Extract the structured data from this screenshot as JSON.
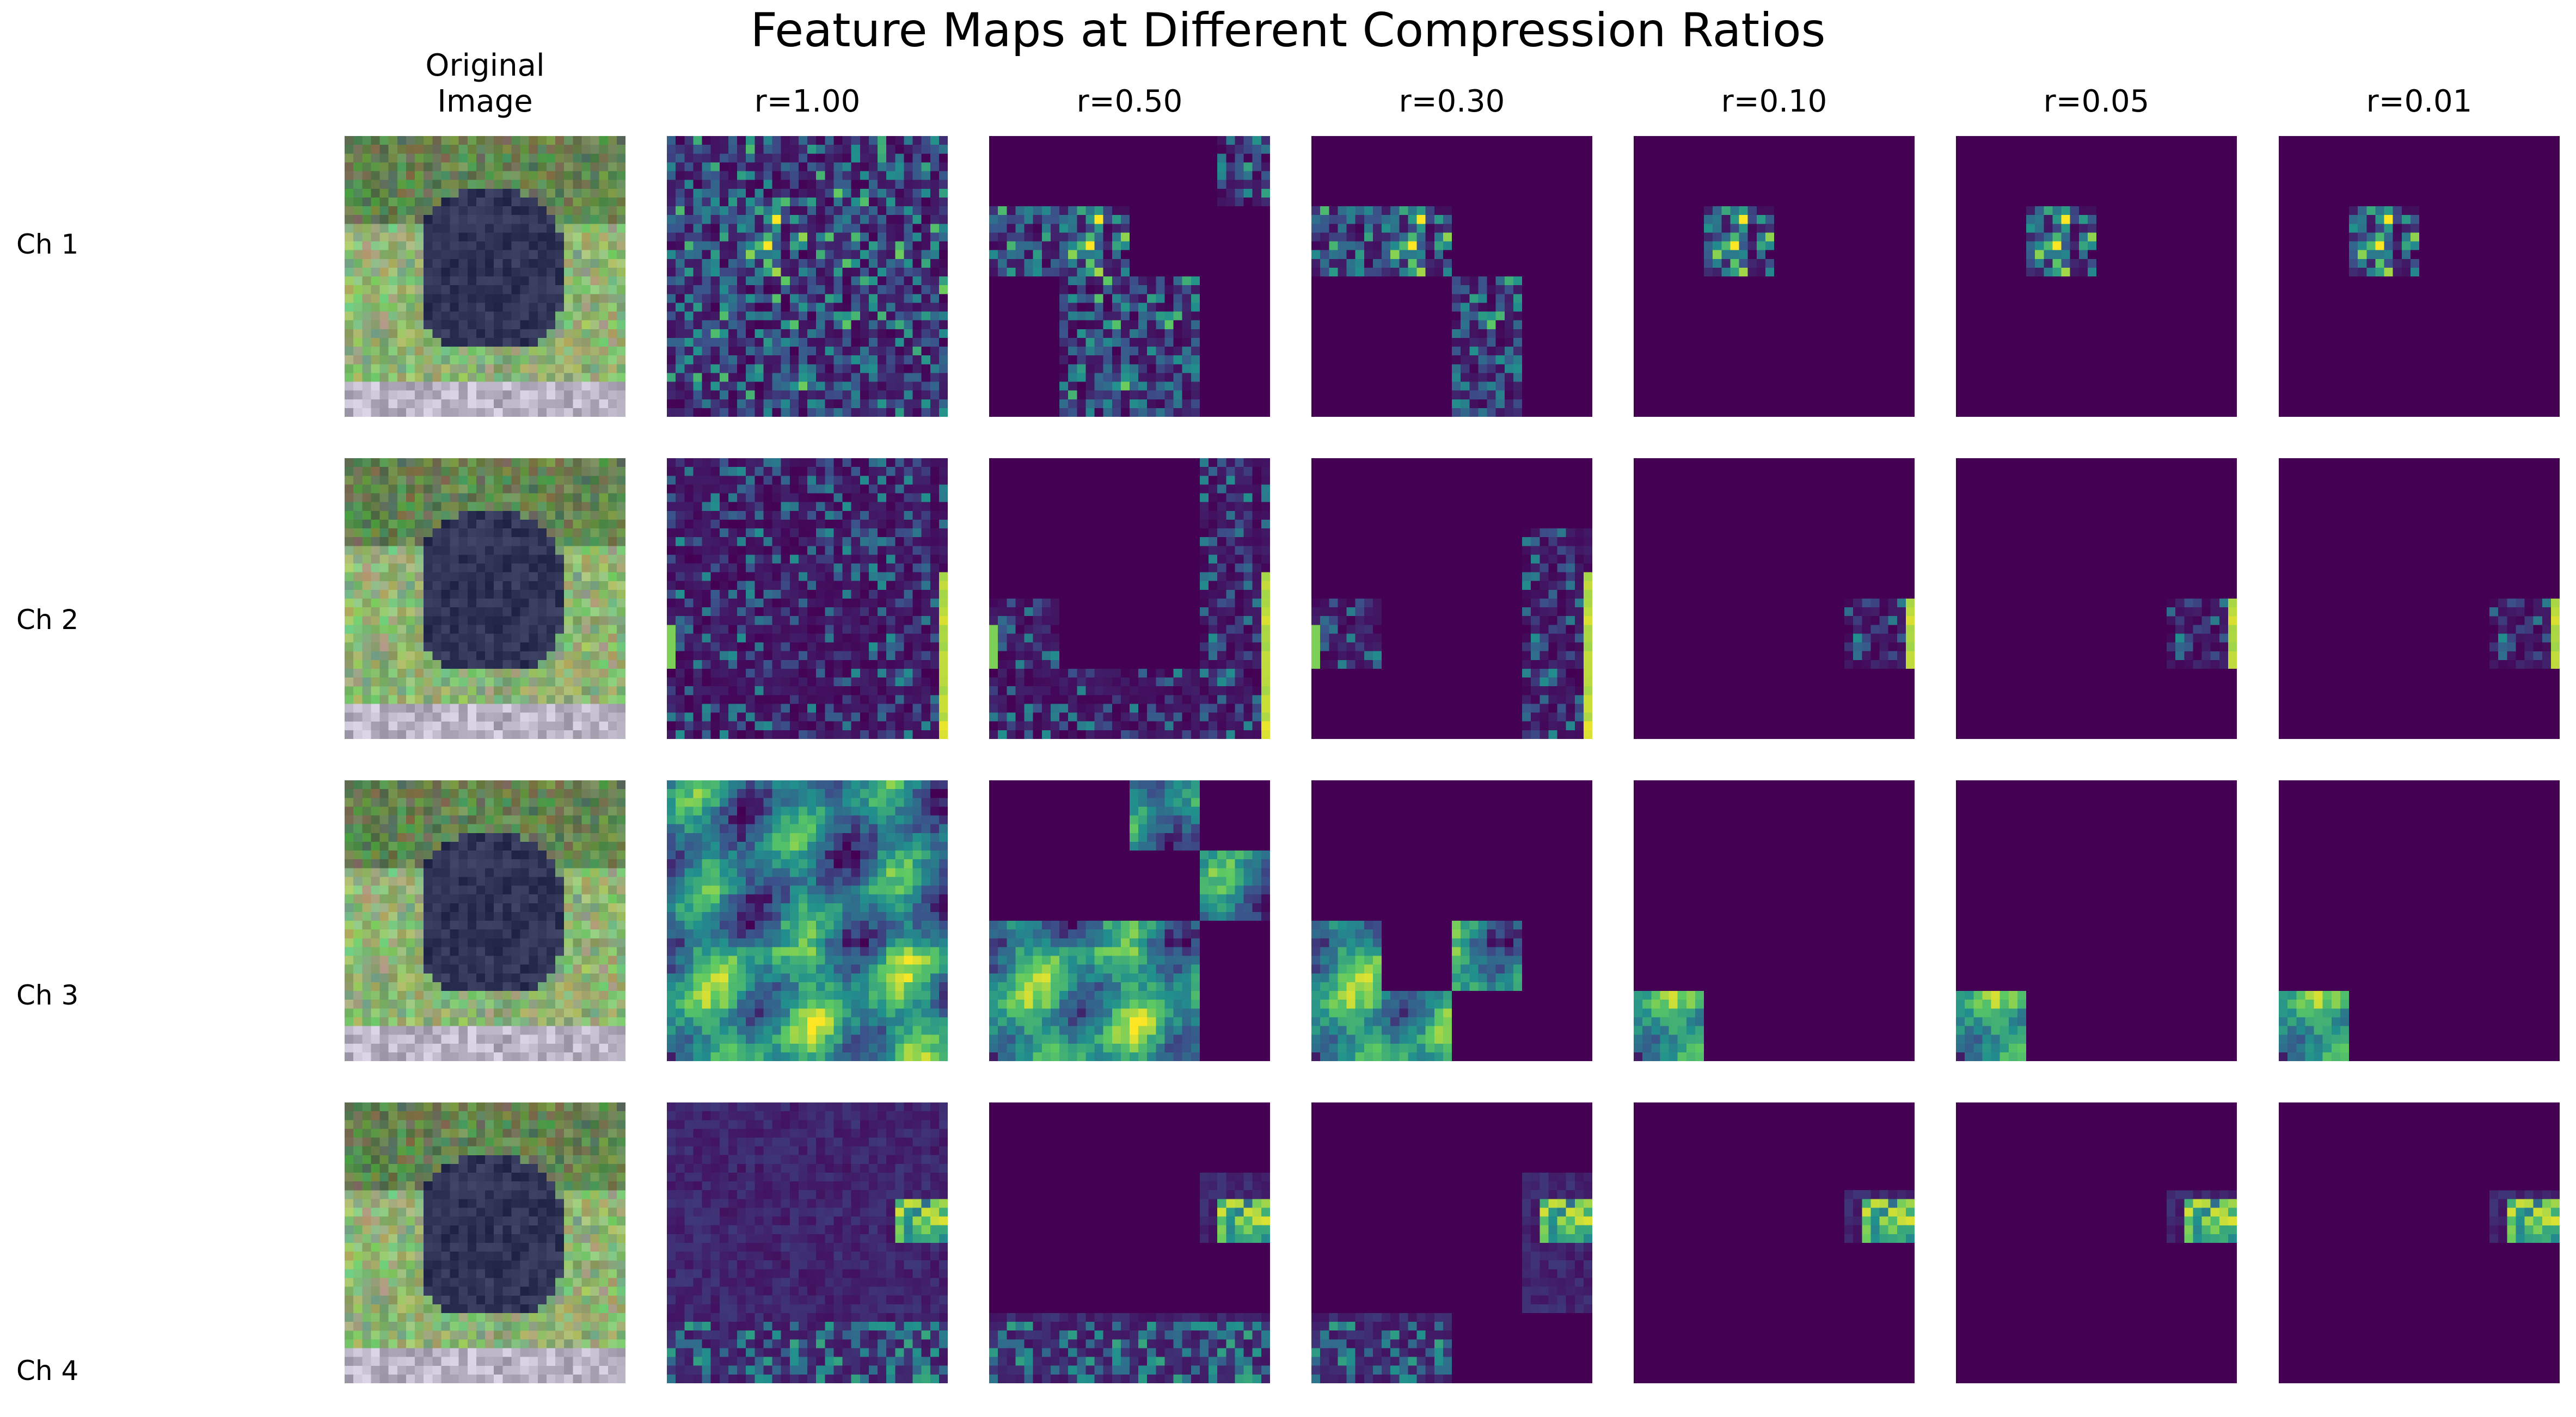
{
  "figure": {
    "title": "Feature Maps at Different Compression Ratios"
  },
  "chart_data": {
    "type": "heatmap",
    "title": "Feature Maps at Different Compression Ratios",
    "columns": [
      "Original\nImage",
      "r=1.00",
      "r=0.50",
      "r=0.30",
      "r=0.10",
      "r=0.05",
      "r=0.01"
    ],
    "column_header_lines": [
      [
        "Original",
        "Image"
      ],
      [
        "r=1.00"
      ],
      [
        "r=0.50"
      ],
      [
        "r=0.30"
      ],
      [
        "r=0.10"
      ],
      [
        "r=0.05"
      ],
      [
        "r=0.01"
      ]
    ],
    "rows": [
      "Ch 1",
      "Ch 2",
      "Ch 3",
      "Ch 4"
    ],
    "compression_ratios": [
      1.0,
      0.5,
      0.3,
      0.1,
      0.05,
      0.01
    ],
    "grid_resolution": 32,
    "colormap": "viridis",
    "axes": "off",
    "kept_regions": [
      {
        "channel": "Ch 1",
        "ratios": {
          "1.00": "full map",
          "0.50": "top band (rows 8-17) plus upper-right and lower-middle blocks",
          "0.30": "top-left block (rows 8-15, cols 0-14) and middle block (rows 16-32, cols 16-24)",
          "0.10": "small block near rows 8-15, cols 8-15",
          "0.05": "small block near rows 8-15, cols 8-15",
          "0.01": "small block near rows 8-15, cols 8-15"
        }
      },
      {
        "channel": "Ch 2",
        "ratios": {
          "1.00": "full map",
          "0.50": "left-middle block, right column strip and bottom band",
          "0.30": "left-middle block and right column strip",
          "0.10": "right-edge block near rows 16-24, cols 24-32",
          "0.05": "right-edge block near rows 16-24, cols 24-32",
          "0.01": "right-edge block near rows 16-24, cols 24-32"
        }
      },
      {
        "channel": "Ch 3",
        "ratios": {
          "1.00": "full map",
          "0.50": "bottom-left band plus two upper-right blocks",
          "0.30": "bottom-left block and a step block",
          "0.10": "bottom-left block (rows 24-32, cols 0-8)",
          "0.05": "bottom-left block (rows 24-32, cols 0-8)",
          "0.01": "bottom-left block (rows 24-32, cols 0-8)"
        }
      },
      {
        "channel": "Ch 4",
        "ratios": {
          "1.00": "full map (mostly low)",
          "0.50": "right-middle block and bottom band",
          "0.30": "right-middle block and bottom-left block",
          "0.10": "right-middle block (rows 10-16, cols 24-32)",
          "0.05": "right-middle block (rows 10-16, cols 24-32)",
          "0.01": "right-middle block (rows 10-16, cols 24-32)"
        }
      }
    ],
    "colors": {
      "background_low": "#440154",
      "viridis_stops": [
        "#440154",
        "#3b528b",
        "#21908d",
        "#5dc963",
        "#fde725"
      ]
    }
  }
}
